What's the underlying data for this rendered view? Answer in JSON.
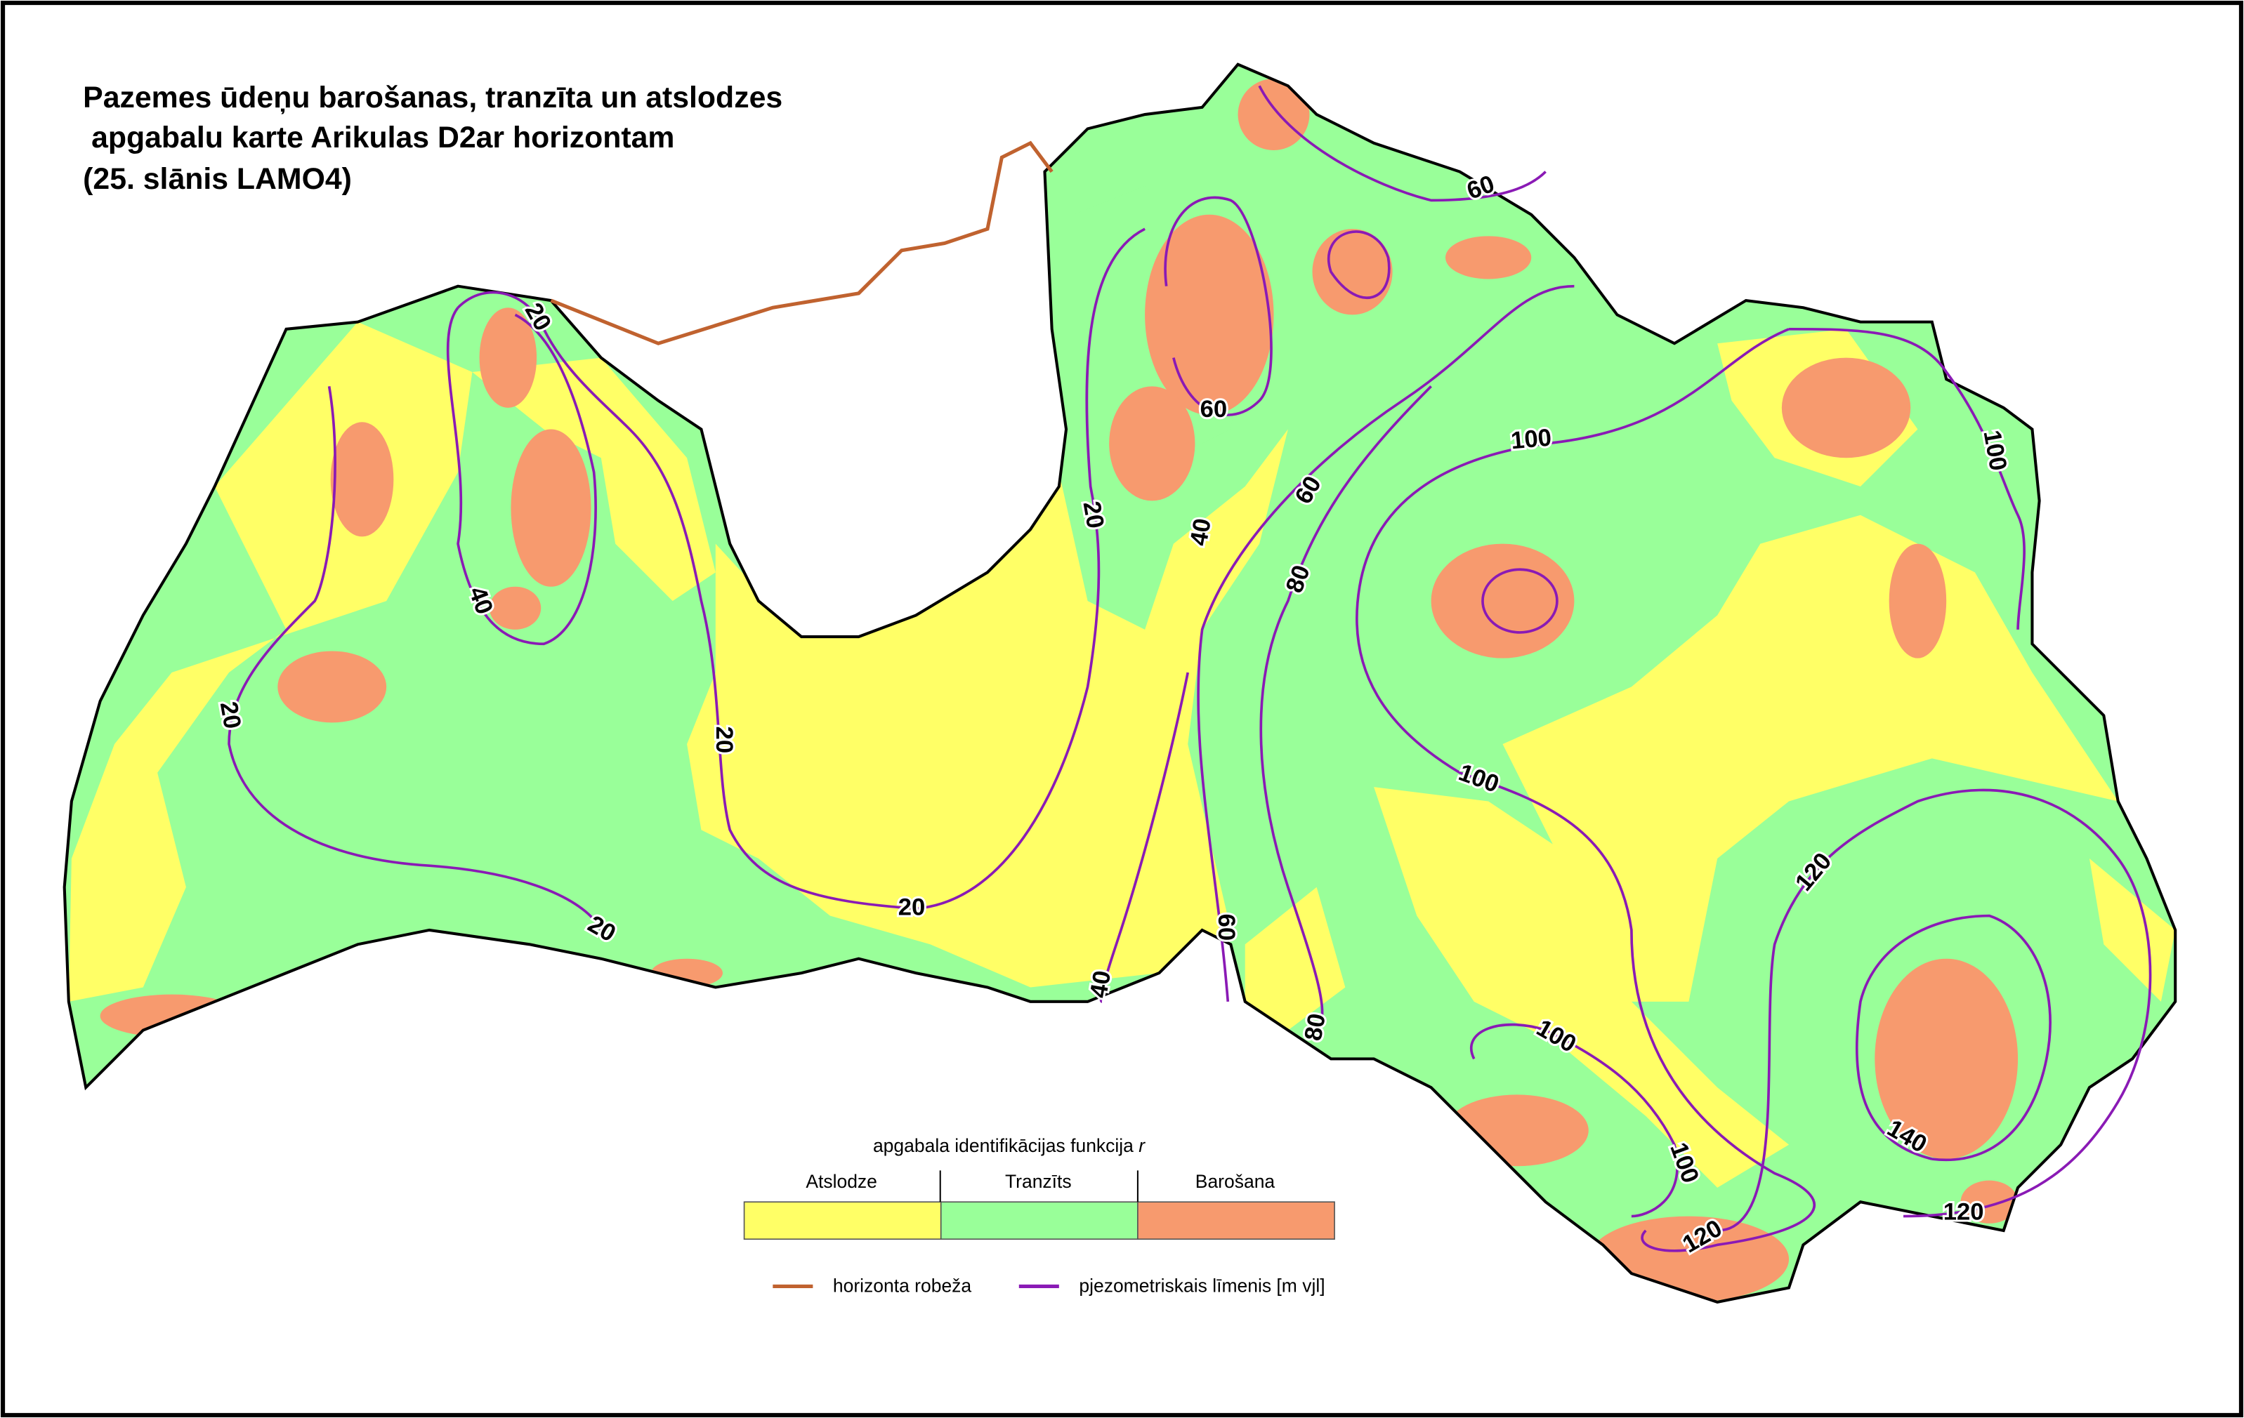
{
  "title": [
    "Pazemes ūdeņu barošanas, tranzīta un atslodzes",
    " apgabalu karte Arikulas D2ar horizontam",
    "(25. slānis LAMO4)"
  ],
  "contour_labels": [
    20,
    40,
    20,
    20,
    20,
    20,
    20,
    40,
    40,
    60,
    60,
    60,
    60,
    80,
    80,
    100,
    100,
    100,
    100,
    100,
    120,
    120,
    120,
    140
  ],
  "legend": {
    "title": "apgabala identifikācijas funkcija",
    "variable": "r",
    "classes": [
      {
        "name": "Atslodze",
        "color": "#ffff66"
      },
      {
        "name": "Tranzīts",
        "color": "#99ff99"
      },
      {
        "name": "Barošana",
        "color": "#f79a6e"
      }
    ],
    "lines": [
      {
        "name": "horizonta robeža",
        "color": "#c0622f"
      },
      {
        "name": "pjezometriskais līmenis [m vjl]",
        "color": "#8a1ab5"
      }
    ]
  }
}
